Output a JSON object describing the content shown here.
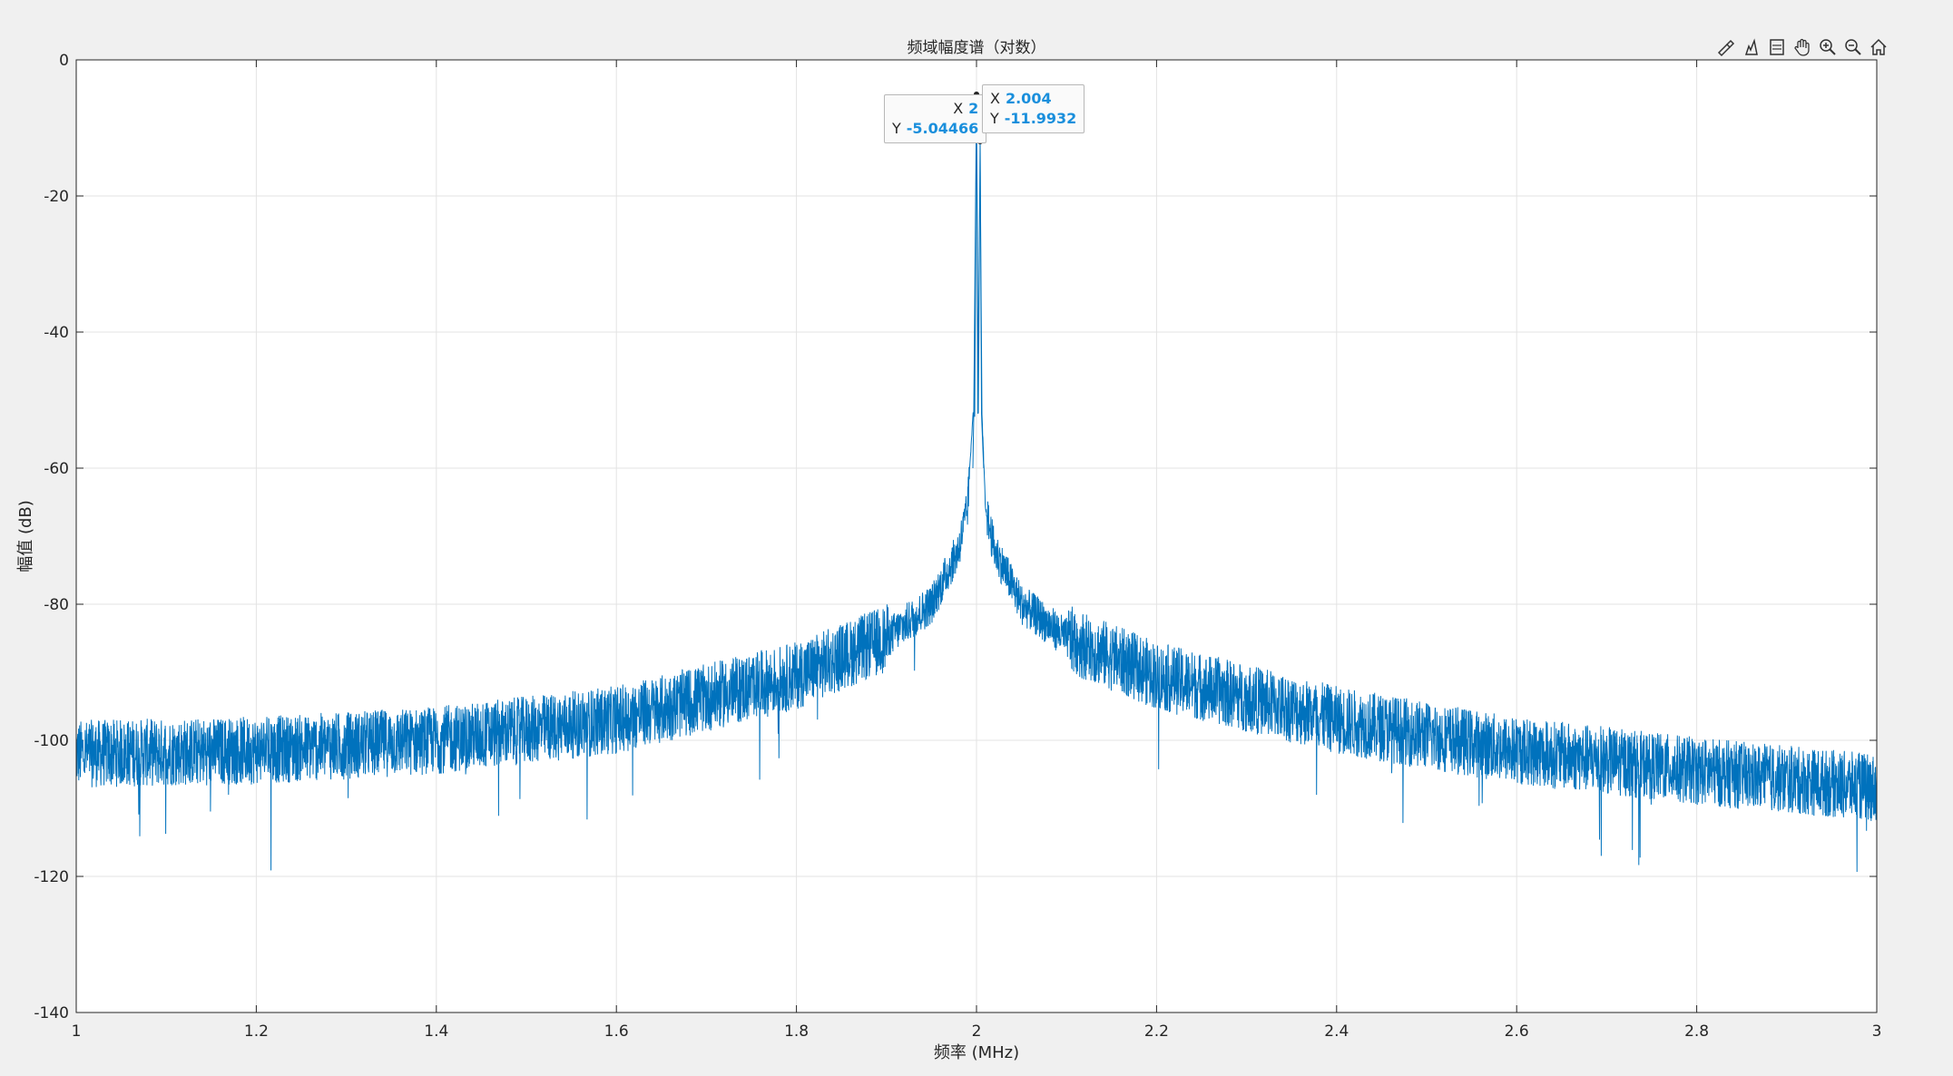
{
  "chart_data": {
    "type": "line",
    "title": "频域幅度谱（对数）",
    "xlabel": "频率 (MHz)",
    "ylabel": "幅值 (dB)",
    "xlim": [
      1,
      3
    ],
    "ylim": [
      -140,
      0
    ],
    "xticks": [
      "1",
      "1.2",
      "1.4",
      "1.6",
      "1.8",
      "2",
      "2.2",
      "2.4",
      "2.6",
      "2.8",
      "3"
    ],
    "yticks": [
      "0",
      "-20",
      "-40",
      "-60",
      "-80",
      "-100",
      "-120",
      "-140"
    ],
    "grid": true,
    "line_color": "#0072bd",
    "series": [
      {
        "x": [
          1.0,
          1.2,
          1.4,
          1.6,
          1.8,
          1.9,
          1.95,
          1.98,
          1.99,
          1.996,
          1.998,
          2.0,
          2.002,
          2.004,
          2.006,
          2.01,
          2.02,
          2.05,
          2.1,
          2.2,
          2.4,
          2.6,
          2.8,
          3.0
        ],
        "values": [
          -102,
          -101.5,
          -100,
          -97,
          -90.5,
          -85,
          -80,
          -72,
          -66,
          -52,
          -52,
          -5.04,
          -52,
          -11.99,
          -52,
          -66,
          -72,
          -80,
          -85,
          -90.5,
          -97,
          -101.5,
          -104.5,
          -107
        ]
      }
    ],
    "annotations": [
      {
        "x": "2",
        "y": "-5.04466"
      },
      {
        "x": "2.004",
        "y": "-11.9932"
      }
    ],
    "datatip_label_x": "X",
    "datatip_label_y": "Y"
  },
  "toolbar": {
    "icons": [
      "brush-icon",
      "datatip-icon",
      "rotate-icon",
      "pan-icon",
      "zoom-in-icon",
      "zoom-out-icon",
      "home-icon"
    ]
  }
}
